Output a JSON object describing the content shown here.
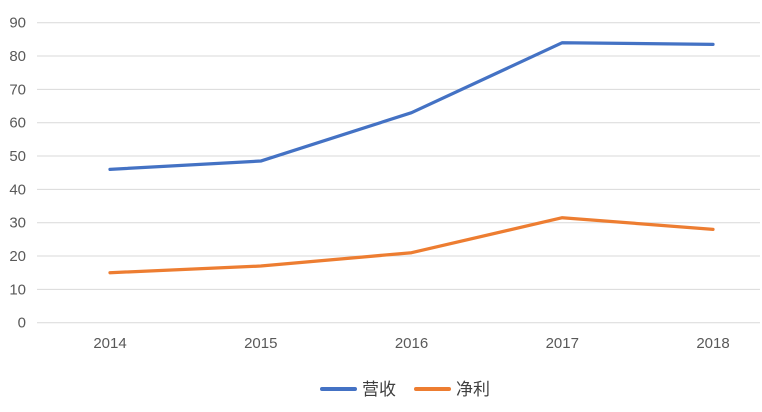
{
  "chart_data": {
    "type": "line",
    "title": "",
    "xlabel": "",
    "ylabel": "",
    "categories": [
      "2014",
      "2015",
      "2016",
      "2017",
      "2018"
    ],
    "series": [
      {
        "name": "营收",
        "color": "#4472C4",
        "values": [
          46,
          48.5,
          63,
          84,
          83.5
        ]
      },
      {
        "name": "净利",
        "color": "#ED7D31",
        "values": [
          15,
          17,
          21,
          31.5,
          28
        ]
      }
    ],
    "ylim": [
      0,
      90
    ],
    "yticks": [
      0,
      10,
      20,
      30,
      40,
      50,
      60,
      70,
      80,
      90
    ],
    "ytick_step": 10,
    "grid": true,
    "legend_position": "bottom",
    "colors": {
      "gridline": "#D9D9D9",
      "axis_label": "#595959",
      "legend_text": "#3F3F3F",
      "background": "#FFFFFF"
    }
  }
}
